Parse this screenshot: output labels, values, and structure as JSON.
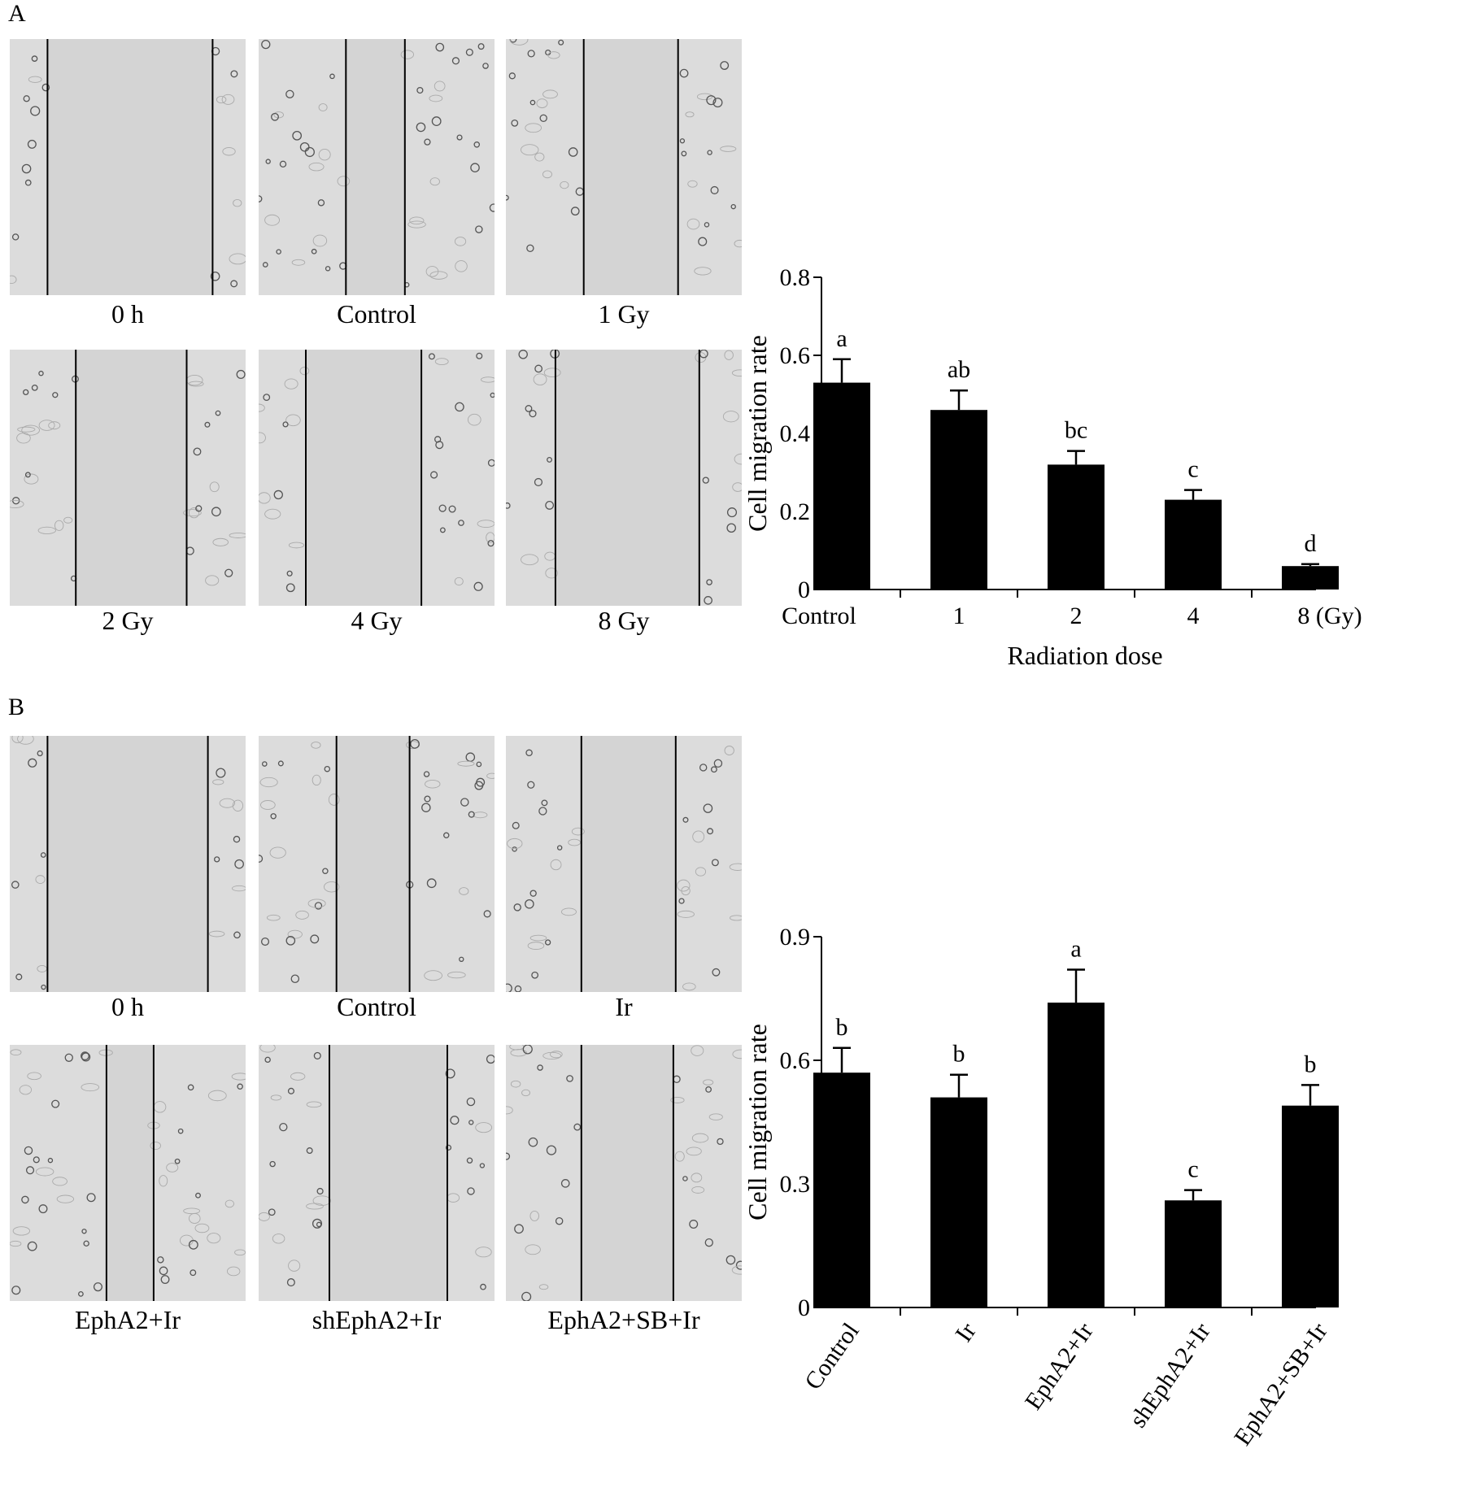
{
  "panels": [
    {
      "letter": "A",
      "images": [
        {
          "label": "0 h",
          "gap": [
            0.16,
            0.86
          ]
        },
        {
          "label": "Control",
          "gap": [
            0.37,
            0.62
          ]
        },
        {
          "label": "1 Gy",
          "gap": [
            0.33,
            0.73
          ]
        },
        {
          "label": "2 Gy",
          "gap": [
            0.28,
            0.75
          ]
        },
        {
          "label": "4 Gy",
          "gap": [
            0.2,
            0.69
          ]
        },
        {
          "label": "8 Gy",
          "gap": [
            0.21,
            0.82
          ]
        }
      ]
    },
    {
      "letter": "B",
      "images": [
        {
          "label": "0 h",
          "gap": [
            0.16,
            0.84
          ]
        },
        {
          "label": "Control",
          "gap": [
            0.33,
            0.64
          ]
        },
        {
          "label": "Ir",
          "gap": [
            0.32,
            0.72
          ]
        },
        {
          "label": "EphA2+Ir",
          "gap": [
            0.41,
            0.61
          ]
        },
        {
          "label": "shEphA2+Ir",
          "gap": [
            0.3,
            0.8
          ]
        },
        {
          "label": "EphA2+SB+Ir",
          "gap": [
            0.32,
            0.71
          ]
        }
      ]
    }
  ],
  "chart_data": [
    {
      "type": "bar",
      "categories": [
        "Control",
        "1",
        "2",
        "4",
        "8 (Gy)"
      ],
      "values": [
        0.53,
        0.46,
        0.32,
        0.23,
        0.06
      ],
      "errors": [
        0.06,
        0.05,
        0.035,
        0.025,
        0.005
      ],
      "bar_labels": [
        "a",
        "ab",
        "bc",
        "c",
        "d"
      ],
      "xlabel": "Radiation dose",
      "ylabel": "Cell migration rate",
      "ylim": [
        0,
        0.8
      ],
      "yticks": [
        0,
        0.2,
        0.4,
        0.6,
        0.8
      ],
      "ytick_labels": [
        "0",
        "0.2",
        "0.4",
        "0.6",
        "0.8"
      ],
      "bar_color": "#000000",
      "xtick_rotation": 0
    },
    {
      "type": "bar",
      "categories": [
        "Control",
        "Ir",
        "EphA2+Ir",
        "shEphA2+Ir",
        "EphA2+SB+Ir"
      ],
      "values": [
        0.57,
        0.51,
        0.74,
        0.26,
        0.49
      ],
      "errors": [
        0.06,
        0.055,
        0.08,
        0.025,
        0.05
      ],
      "bar_labels": [
        "b",
        "b",
        "a",
        "c",
        "b"
      ],
      "xlabel": "",
      "ylabel": "Cell migration rate",
      "ylim": [
        0,
        0.9
      ],
      "yticks": [
        0,
        0.3,
        0.6,
        0.9
      ],
      "ytick_labels": [
        "0",
        "0.3",
        "0.6",
        "0.9"
      ],
      "bar_color": "#000000",
      "xtick_rotation": -55
    }
  ]
}
